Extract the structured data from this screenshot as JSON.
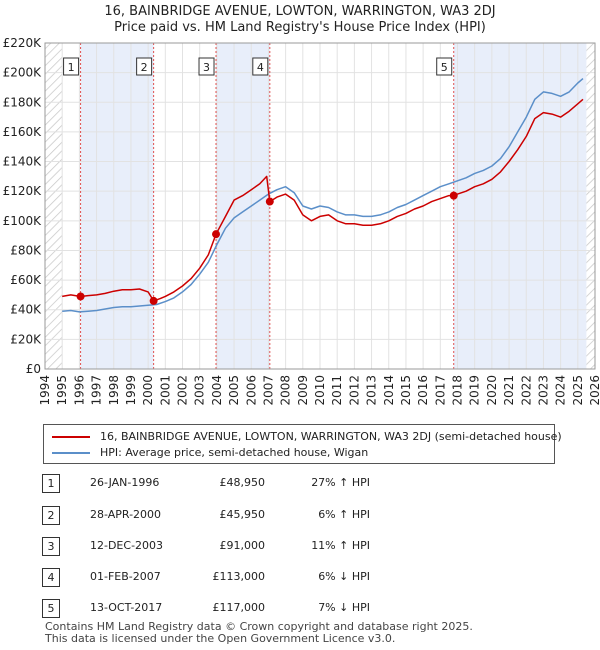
{
  "title_line1": "16, BAINBRIDGE AVENUE, LOWTON, WARRINGTON, WA3 2DJ",
  "title_line2": "Price paid vs. HM Land Registry's House Price Index (HPI)",
  "legend": {
    "property_label": "16, BAINBRIDGE AVENUE, LOWTON, WARRINGTON, WA3 2DJ (semi-detached house)",
    "hpi_label": "HPI: Average price, semi-detached house, Wigan"
  },
  "transactions": [
    {
      "num": "1",
      "date": "26-JAN-1996",
      "price": "£48,950",
      "hpi": "27% ↑ HPI"
    },
    {
      "num": "2",
      "date": "28-APR-2000",
      "price": "£45,950",
      "hpi": "6% ↑ HPI"
    },
    {
      "num": "3",
      "date": "12-DEC-2003",
      "price": "£91,000",
      "hpi": "11% ↑ HPI"
    },
    {
      "num": "4",
      "date": "01-FEB-2007",
      "price": "£113,000",
      "hpi": "6% ↓ HPI"
    },
    {
      "num": "5",
      "date": "13-OCT-2017",
      "price": "£117,000",
      "hpi": "7% ↓ HPI"
    }
  ],
  "footer_line1": "Contains HM Land Registry data © Crown copyright and database right 2025.",
  "footer_line2": "This data is licensed under the Open Government Licence v3.0.",
  "colors": {
    "property": "#cc0000",
    "hpi": "#5b8fc9",
    "shade": "#e8eefa",
    "marker_line": "#e05050"
  },
  "chart_data": {
    "type": "line",
    "xlim": [
      1994,
      2026
    ],
    "ylim": [
      0,
      220000
    ],
    "x_ticks": [
      1994,
      1995,
      1996,
      1997,
      1998,
      1999,
      2000,
      2001,
      2002,
      2003,
      2004,
      2005,
      2006,
      2007,
      2008,
      2009,
      2010,
      2011,
      2012,
      2013,
      2014,
      2015,
      2016,
      2017,
      2018,
      2019,
      2020,
      2021,
      2022,
      2023,
      2024,
      2025,
      2026
    ],
    "y_ticks": [
      0,
      20000,
      40000,
      60000,
      80000,
      100000,
      120000,
      140000,
      160000,
      180000,
      200000,
      220000
    ],
    "y_tick_labels": [
      "£0",
      "£20K",
      "£40K",
      "£60K",
      "£80K",
      "£100K",
      "£120K",
      "£140K",
      "£160K",
      "£180K",
      "£200K",
      "£220K"
    ],
    "sales": [
      {
        "label": "1",
        "x": 1996.07,
        "y": 48950
      },
      {
        "label": "2",
        "x": 2000.32,
        "y": 45950
      },
      {
        "label": "3",
        "x": 2003.95,
        "y": 91000
      },
      {
        "label": "4",
        "x": 2007.08,
        "y": 113000
      },
      {
        "label": "5",
        "x": 2017.78,
        "y": 117000
      }
    ],
    "shaded_spans": [
      [
        1996.07,
        2000.32
      ],
      [
        2003.95,
        2007.08
      ],
      [
        2017.78,
        2025.5
      ]
    ],
    "hatch_ranges": [
      [
        1994,
        1995
      ],
      [
        2025.5,
        2026
      ]
    ],
    "series": [
      {
        "name": "HPI: Average price, semi-detached house, Wigan",
        "points": [
          [
            1995.0,
            39000
          ],
          [
            1995.5,
            39500
          ],
          [
            1996.0,
            38500
          ],
          [
            1996.5,
            39000
          ],
          [
            1997.0,
            39500
          ],
          [
            1997.5,
            40500
          ],
          [
            1998.0,
            41500
          ],
          [
            1998.5,
            42000
          ],
          [
            1999.0,
            42000
          ],
          [
            1999.5,
            42500
          ],
          [
            2000.0,
            43000
          ],
          [
            2000.5,
            43500
          ],
          [
            2001.0,
            45500
          ],
          [
            2001.5,
            48000
          ],
          [
            2002.0,
            52000
          ],
          [
            2002.5,
            57000
          ],
          [
            2003.0,
            64000
          ],
          [
            2003.5,
            72000
          ],
          [
            2004.0,
            84000
          ],
          [
            2004.5,
            95000
          ],
          [
            2005.0,
            102000
          ],
          [
            2005.5,
            106000
          ],
          [
            2006.0,
            110000
          ],
          [
            2006.5,
            114000
          ],
          [
            2007.0,
            118000
          ],
          [
            2007.5,
            121000
          ],
          [
            2008.0,
            123000
          ],
          [
            2008.5,
            119000
          ],
          [
            2009.0,
            110000
          ],
          [
            2009.5,
            108000
          ],
          [
            2010.0,
            110000
          ],
          [
            2010.5,
            109000
          ],
          [
            2011.0,
            106000
          ],
          [
            2011.5,
            104000
          ],
          [
            2012.0,
            104000
          ],
          [
            2012.5,
            103000
          ],
          [
            2013.0,
            103000
          ],
          [
            2013.5,
            104000
          ],
          [
            2014.0,
            106000
          ],
          [
            2014.5,
            109000
          ],
          [
            2015.0,
            111000
          ],
          [
            2015.5,
            114000
          ],
          [
            2016.0,
            117000
          ],
          [
            2016.5,
            120000
          ],
          [
            2017.0,
            123000
          ],
          [
            2017.5,
            125000
          ],
          [
            2018.0,
            127000
          ],
          [
            2018.5,
            129000
          ],
          [
            2019.0,
            132000
          ],
          [
            2019.5,
            134000
          ],
          [
            2020.0,
            137000
          ],
          [
            2020.5,
            142000
          ],
          [
            2021.0,
            150000
          ],
          [
            2021.5,
            160000
          ],
          [
            2022.0,
            170000
          ],
          [
            2022.5,
            182000
          ],
          [
            2023.0,
            187000
          ],
          [
            2023.5,
            186000
          ],
          [
            2024.0,
            184000
          ],
          [
            2024.5,
            187000
          ],
          [
            2025.0,
            193000
          ],
          [
            2025.3,
            196000
          ]
        ]
      },
      {
        "name": "16, BAINBRIDGE AVENUE, LOWTON, WARRINGTON, WA3 2DJ (semi-detached house)",
        "points": [
          [
            1995.0,
            49000
          ],
          [
            1995.5,
            50000
          ],
          [
            1996.07,
            48950
          ],
          [
            1996.5,
            49500
          ],
          [
            1997.0,
            50000
          ],
          [
            1997.5,
            51000
          ],
          [
            1998.0,
            52500
          ],
          [
            1998.5,
            53500
          ],
          [
            1999.0,
            53500
          ],
          [
            1999.5,
            54000
          ],
          [
            2000.0,
            52000
          ],
          [
            2000.32,
            45950
          ],
          [
            2000.7,
            47500
          ],
          [
            2001.0,
            49000
          ],
          [
            2001.5,
            52000
          ],
          [
            2002.0,
            56000
          ],
          [
            2002.5,
            61000
          ],
          [
            2003.0,
            68000
          ],
          [
            2003.5,
            77000
          ],
          [
            2003.95,
            91000
          ],
          [
            2004.5,
            103000
          ],
          [
            2005.0,
            114000
          ],
          [
            2005.5,
            117000
          ],
          [
            2006.0,
            121000
          ],
          [
            2006.5,
            125000
          ],
          [
            2006.9,
            130000
          ],
          [
            2007.08,
            113000
          ],
          [
            2007.5,
            116000
          ],
          [
            2008.0,
            118000
          ],
          [
            2008.5,
            114000
          ],
          [
            2009.0,
            104000
          ],
          [
            2009.5,
            100000
          ],
          [
            2010.0,
            103000
          ],
          [
            2010.5,
            104000
          ],
          [
            2011.0,
            100000
          ],
          [
            2011.5,
            98000
          ],
          [
            2012.0,
            98000
          ],
          [
            2012.5,
            97000
          ],
          [
            2013.0,
            97000
          ],
          [
            2013.5,
            98000
          ],
          [
            2014.0,
            100000
          ],
          [
            2014.5,
            103000
          ],
          [
            2015.0,
            105000
          ],
          [
            2015.5,
            108000
          ],
          [
            2016.0,
            110000
          ],
          [
            2016.5,
            113000
          ],
          [
            2017.0,
            115000
          ],
          [
            2017.5,
            117000
          ],
          [
            2017.78,
            117000
          ],
          [
            2018.0,
            118000
          ],
          [
            2018.5,
            120000
          ],
          [
            2019.0,
            123000
          ],
          [
            2019.5,
            125000
          ],
          [
            2020.0,
            128000
          ],
          [
            2020.5,
            133000
          ],
          [
            2021.0,
            140000
          ],
          [
            2021.5,
            148000
          ],
          [
            2022.0,
            157000
          ],
          [
            2022.5,
            169000
          ],
          [
            2023.0,
            173000
          ],
          [
            2023.5,
            172000
          ],
          [
            2024.0,
            170000
          ],
          [
            2024.5,
            174000
          ],
          [
            2025.0,
            179000
          ],
          [
            2025.3,
            182000
          ]
        ]
      }
    ]
  }
}
